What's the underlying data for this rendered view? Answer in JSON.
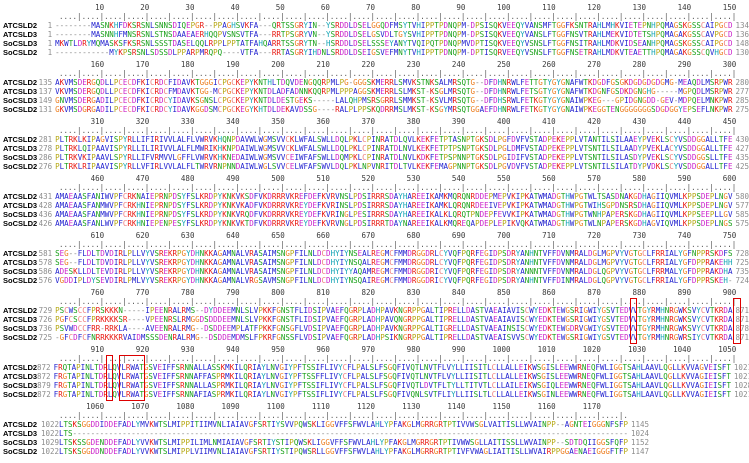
{
  "figure": {
    "type": "multiple-sequence-alignment",
    "sequence_names": [
      "ATCSLD2",
      "ATCSLD3",
      "SoCSLD3",
      "SoCSLD2"
    ],
    "highlight_color": "#dd0000",
    "palette": {
      "AILMFWV": "#2222cf",
      "KR": "#e8150d",
      "DE": "#cb23cb",
      "NQST": "#18a018",
      "C": "#ef7d7d",
      "G": "#ed7f21",
      "P": "#b5a711",
      "HY": "#13a5b5",
      "-": "#8a8a8a"
    }
  },
  "alignment": {
    "blocks": [
      {
        "start": 1,
        "rows": [
          {
            "name": "ATCSLD2",
            "s": 1,
            "e": 134,
            "q": "--------MASNKHFDKSRSNLSNNSDIQEPGR--PPAGHSVKFA---QRTSSGRYIN--YSRDDLDSELGGQDFMSYTVHIPPTPDNQPM-DPSISQKVEEQYVANSMFTGGFKSNTRAHLMHKVIETEPNHPQMAGSKGSSCAIPGCD"
          },
          {
            "name": "ATCSLD3",
            "s": 1,
            "e": 136,
            "q": "--------MASNNHFMNSRSNLSTNSDAAEAERHQQPVSNSVTFA---RRTPSGRYVN--YSRDDLDSELGSVDLTGYSVHIPPTPDNQPM-DPSISQKVEEQYVANSLFTGGFNSVTRAHLMEKVIDTETSHPQMAGAKGSSCAVPGCD"
          },
          {
            "name": "SoCSLD3",
            "s": 1,
            "e": 148,
            "q": "MKWTLDRYMQMASKSFKSRSNLSSSTDASELQQLRPPLPPTATFAHQARRTSSGRYTN--HSRDDLDSELSSSEYANYTVQIPQTPDNQPMVDPTISQKVEEQYVSNSLFTGGFNSITRAHLMDKVIDSEANHPQMAGSKGSSCAIPGCD"
          },
          {
            "name": "SoCSLD2",
            "s": 1,
            "e": 130,
            "q": "------------MYKPSRSNLSDSSDLPPARPMRQPQ----VTFA---RRTASGRYIHDNLSRDDLDSEIGSVEFMNYTVHIPPTPDNQPM-DPTISQRVEEQYVSNSLFTGGFNSETRAHLMDKVTEAETTHPQMAGAKGSSCQVHGCD"
          }
        ]
      },
      {
        "start": 151,
        "rows": [
          {
            "name": "ATCSLD2",
            "s": 135,
            "e": 280,
            "q": "AKVMSDERGQDLLPCECDFKICRDCFIDAVKTGGGICPGCKEPYKNTHLTDQVDENGQQRPMLPG-GGGSKMERRLSMVKSTNKSALMRSQTG--DFDHNRWLFETTGTYGYGNAFWTKDGDFGSGKDGDGDGDGMG-MEAQDLMSRPWR"
          },
          {
            "name": "ATCSLD3",
            "s": 137,
            "e": 277,
            "q": "VKVMSDERGQDLLPCECDFKICRDCFMDAVKTGG-MCPGCKEPYKNTDLADFADNNKQQRPMLPPPAGGSKMERRLSLMKST-KSGLMRSQTG--DFDHNRWLFETSGTYGYGNAFWTKDGNFGSDKDGNGHG-----MGPQDLMSRPWR"
          },
          {
            "name": "SoCSLD3",
            "s": 149,
            "e": 285,
            "q": "GNVMSDERGADILPCECDFKICRDCYIDAVKSGNSLCPGCKEPYKNTDLDESTGEKS-----LALQHPMSRSGRRLSMMKST-KSVLMRSQTG--DFDHSRWLFETKGTYGYGNAIWPKEG---GPIDGNGDD-GEV-MDPQELMNKPWR"
          },
          {
            "name": "SoCSLD2",
            "s": 131,
            "e": 275,
            "q": "GKVMSDGRGADILPCECDFKICRDCYIDAVKGGDSMCPGCKEGYKHTDLDEKAVDSSG----RALPLPPSKQDRRMSLMKST-KSGYMRSQTGGAEFDHNRWLFETKGTYGYGNAIWPKEGGTENGGGGGGGSDGDGGYEPSEFLNKPWR"
          }
        ]
      },
      {
        "start": 301,
        "rows": [
          {
            "name": "ATCSLD2",
            "s": 281,
            "e": 430,
            "q": "PLTRKLKIPAGVISPYRLLIFIRIVVLALFLVWRVKHQNPDAVWLWGMSVVCKLWFALSWLLDQLPKLCPINRATDLQVLKEKFETPTASNPTGKSDLPGFDVFVSTADPEKEPPLVTANTILSILAAEYPVEKLSCYVSDDGGALLTFE"
          },
          {
            "name": "ATCSLD3",
            "s": 278,
            "e": 427,
            "q": "PLTRKLQIPAAVISPYRLLILIRIVVLALFLMWRIKHKNPDAIWLWGMSVVCKLWFALSWLLDQLPKLCPINRATDLNVLKEKFETPTPSNPTGKSDLPGLDMFVSTADPEKEPPLVTSNTILSILAADYPVEKLACYVSDDGGALLTFE"
          },
          {
            "name": "SoCSLD3",
            "s": 286,
            "e": 435,
            "q": "PLTRKVKIPAAVLSPYRLLIFVRMVVLGFFLVWRVKHKNEDAIWLWGMSVVCEIWFAFSWLLDQMPKLCPINRATDLNVLKDKFETPSPNNPTGKSDLPGIDIFVSTADPEKEPPLVTSNTILSILASDYPVEKLSCYVSDDGGSLLTFE"
          },
          {
            "name": "SoCSLD2",
            "s": 276,
            "e": 425,
            "q": "PLTRKLRIPAAVISPYRLLVFIRLVVLALFLTWRVRNPNNDAIWLWGLSVVCELWFAFSWVLDQLPKLNPVNRITDLTVLKEKFEMAGPNNPTGKSDLPGVDVFVSTADPEKEPPLVTSNTILSILATDYPVDKLSCYVSDDGGALLTFE"
          }
        ]
      },
      {
        "start": 451,
        "rows": [
          {
            "name": "ATCSLD2",
            "s": 431,
            "e": 580,
            "q": "AMAEAASFANIWVPFCRKNAIEPRNPDSYFSLKRDPYKNKVKSDFVKDRRRVKREFDEFKVRVNSLPDSIRRRSDAYHAREEIKAMKMQRQNRDDEPMEPVKIPKATWMADGTHWPGTWLTSASDNAKGDHAGIIQVMLKPPSDEPLNGV"
          },
          {
            "name": "ATCSLD3",
            "s": 428,
            "e": 577,
            "q": "AMAEAASFANMWVPFCRKHNIEPRNPDSYFSLKRDPYKNKVKADFVKDRRRVKREYDEFKVRINSLPDSIRRRSDAYHAREEIKAMKLQRQNRDEEIVEPVKIPKATWMADGTHWPGTWIHSGPDNSRSDHAGIIQVMLKPPSDEPLNGV"
          },
          {
            "name": "SoCSLD3",
            "s": 436,
            "e": 585,
            "q": "AMAEAASFANMWVPFCRKHNIEPRNPDSYFSLKRDPYKNKVRQDFVKDRRRVKREYDEFKVRINGLPESIRRRSDAYHAREEIKALKLQRQTPNDEPFEVVKIPKATWMADGTHWPGTWNHPAPERSKGDHAGIIQVMLKPPSEEPLLGV"
          },
          {
            "name": "SoCSLD2",
            "s": 426,
            "e": 575,
            "q": "AMAEAASFANLWVPFCRKHNIEPENPESYFSLKRDPYKNKVKTDFVKDRRRVKREYDEFKVRVNGLPDSIRRRTDAYNAREEIKALKMQREQAPDEPLEPIKVQKATWMADGTHWPGTWLNPAPERSKGDHAGVIQVMLKPPSDEPLNGS"
          }
        ]
      },
      {
        "start": 601,
        "rows": [
          {
            "name": "ATCSLD2",
            "s": 581,
            "e": 728,
            "q": "SEG--FLDLTDVDIRLPLLVYVSREKRPGYDHNKKAGAMNALVRASAIMSNGPFILNLDCDHYIYNSEALREGMCFMMDRGGDRLCYVQFPQRFEGIDPSDRYANHNTVFFDVNMRALDGLMGPVYVGTGCLFRRIALYGFNPPRSKDFS"
          },
          {
            "name": "ATCSLD3",
            "s": 578,
            "e": 725,
            "q": "SEG--FLDLTDVDIRLPLLVYVSREKRPGYDHNKKAGAMNALVRASAIMSNGPFILNLDCDHYIYNSQALREGMCFMMDRGGDRLCYVQFPQRFEGIDPSDRYANHNTVFFDVNMRALDGLMGPVYVGTGCLFRRIALYGFDPPRAKEHH"
          },
          {
            "name": "SoCSLD3",
            "s": 586,
            "e": 735,
            "q": "ADESKLLDLTEVDIRLPLLVYVSREKRPGYDHNKKAGAMNALVRASAIMSNGPFILNLDCDHYIYYAQAMREGMCFMMDRGGDRICYVQFPQRFEGIDPSDRYANNNTVFFDVNMRALDGLQGPVYVGTGCLFRRMALYGFDPPRAKDHA"
          },
          {
            "name": "SoCSLD2",
            "s": 576,
            "e": 724,
            "q": "VGDDIPLDYSEVDIRLPMLVYVSREKRPGYDHNKKAGAMNALVRGSAVMSNGPFILNLDCDHYIYNSQAIREGMCFMMDRGGDRICYVQFPQRFEGIDPSDRYANHNTVFFDINMRALDGLQGPVYVGTGCLFRRIALYGFDPPRSKEH-"
          }
        ]
      },
      {
        "start": 751,
        "rows": [
          {
            "name": "ATCSLD2",
            "s": 729,
            "e": 871,
            "q": "PSCWSCCFPRSKKKN-----IPEENRALRMS--DYDDEEMNLSLVPKKFGNSTFLIDSIPVAEFQGRPLADHPAVKNGRPPGALTIPRELLDASTVAEAIAVISCWYEDKTEWGSRIGWIYGSVTEDVVTGYRMHNRGWKSVYCVTKRDA"
          },
          {
            "name": "ATCSLD3",
            "s": 726,
            "e": 871,
            "q": "PGFCSCCFPRKKKKSR----VPEENRSLRMGGDSDDDEEMNLSLVPKKFGNSTFLIDSIPVAEFQGRPLADHPAVQNGRPPGALTIPRELLDASTVAEAIAVISCWYEDKTEWGSRIGWIYGSVTEDVVTGYRMHNRGWKSVYCVTKRDA"
          },
          {
            "name": "SoCSLD3",
            "s": 736,
            "e": 878,
            "q": "PSVWDCCFRR-RRKLA----AVEENRALRMG--DSDDEEMPLATFPKKFGNSGFLVDSIPVAEFQGRPLADHPAVKNGRPPGALTIGRELLDASTVAEAINSISCWYEDKTEWGDRVGWIYGSVTEDVVTGYRMHNRGWKSVYCVTKRDA"
          },
          {
            "name": "SoCSLD2",
            "s": 725,
            "e": 871,
            "q": "-GFCDFCFNRRKKKRVAIDMSSSDENRALRMG--DSDDEMDMSLFPKRFGNSSFLVDSIPVAEFQGRPLADHPSIKNGRPPGALTIPRELLDASTVAEAISVVSCWYEDKTEWGSRIGWIYGSVTEDVVTGYRMHNRGWRSIYCVTKRDA"
          }
        ]
      },
      {
        "start": 901,
        "rows": [
          {
            "name": "ATCSLD2",
            "s": 872,
            "e": 1021,
            "q": "FRQTAPINLTDRLQVLRWATGSVEIFFSRNNALLASSKMKILQRIAYLNVGIYPFTSSIFLIVYCFLPALSLFSGQFIVQTLNVTFLVYLLIISITLCLLALLEIKWSGISLEEWWRNEQFWLIGGTSAHLAAVLQGLLKVVAGVEISFT"
          },
          {
            "name": "ATCSLD3",
            "s": 872,
            "e": 1021,
            "q": "FRGTAPINLTDRLQVLRWATGSVEIFFSRNNAFFASPRMKILQRIAYLNVGIYPFTSSFFLIVYCFLPALSLFSGQFIVQTLNVTFLVYLLIISITLCLLALLEIKWSGISLEEWWRNEQFWLIGGTSAHLAAVLQGLLKVVAGIEISFT"
          },
          {
            "name": "SoCSLD3",
            "s": 879,
            "e": 1028,
            "q": "FRGTAPINLTDRLQVLRWATGSVEIFFSRNNALLASPRMKILQRIAYLNVGIYPFTSSIFLIVYCFLPALSLFSGQFIVQTLDVTFLTYLLTITVTLCLLAILEIKWSGIQLEEWWRNEQFWLIGGTSAHLAAVLQGLLKVVAGIEISFT"
          },
          {
            "name": "SoCSLD2",
            "s": 872,
            "e": 1021,
            "q": "FRGTAPINLTDRLQVLRWATGSVEIFFSRNNAFIASPRMKILQRIAYLNVGIYPFTSSIFLIVYCFLPALSLFSGQFIVQNLSVTFLIYLLIISLTLCLLALLEIKWSGINLEEWWRNEQFWLIGGTSAHLAAVLQGLLKVVAGIEISFT"
          }
        ]
      },
      {
        "start": 1051,
        "rows": [
          {
            "name": "ATCSLD2",
            "s": 1022,
            "e": 1145,
            "q": "LTSKSGGDDIDDEFADLYMVKWTSLMIPPITIIMVNLIAIAVGFSRTIYSVVPQWSKLIGGVFFSFWVLAHLYPFAKGLMGRRGRTPTIVVWSGLVAITISLLWVAINPP--AGNTEIGGGNFSFP"
          },
          {
            "name": "ATCSLD3",
            "s": 1022,
            "e": 1024,
            "q": "LTS---------------------------------------------------------------------------------------------------------------------------"
          },
          {
            "name": "SoCSLD3",
            "s": 1029,
            "e": 1152,
            "q": "LTSKSSGDENDDEFADLYVVKWTSLMIPPILIMLNMIAIAVGFSRTIYSTIPQWSKLIGGVFFSFWVLAHLYPFAKGLMGRRGRTPTIVWWSGLLAITISSLLWVAINPP--SDTDQIIGGSFQFP"
          },
          {
            "name": "SoCSLD2",
            "s": 1022,
            "e": 1147,
            "q": "LTSKSGGDDNDDEFADLYVVKWTSLMIPPLVIIMVNLIAIAVGFSRTIYSTIPQWSRLLGGVFFSFWVLAHLYPFAKGLMGRRGRTPTIVFVWAGLIAITISLLWVAIRPPGGAENAEIGGGFTFP"
          }
        ]
      }
    ],
    "motif_boxes": [
      {
        "block": 5,
        "col_start": 877,
        "col_end": 877
      },
      {
        "block": 5,
        "col_start": 900,
        "col_end": 900
      },
      {
        "block": 6,
        "col_start": 911,
        "col_end": 911
      },
      {
        "block": 6,
        "col_start": 914,
        "col_end": 918
      }
    ]
  }
}
